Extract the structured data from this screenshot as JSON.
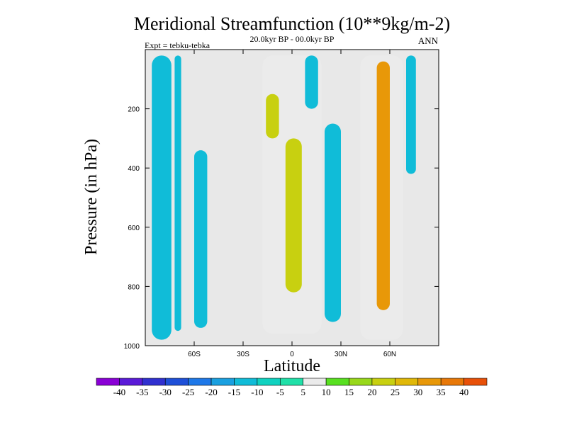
{
  "chart_data": {
    "type": "contour",
    "title": "Meridional Streamfunction (10**9kg/m-2)",
    "subtitle": "20.0kyr BP - 00.0kyr BP",
    "left_label": "Expt = tebku-tebka",
    "right_label": "ANN",
    "xlabel": "Latitude",
    "ylabel": "Pressure (in hPa)",
    "xlim": [
      -90,
      90
    ],
    "ylim": [
      1000,
      0
    ],
    "x_ticks": [
      -60,
      -30,
      0,
      30,
      60
    ],
    "x_tick_labels": [
      "60S",
      "30S",
      "0",
      "30N",
      "60N"
    ],
    "y_ticks": [
      200,
      400,
      600,
      800,
      1000
    ],
    "y_tick_labels": [
      "200",
      "400",
      "600",
      "800",
      "1000"
    ],
    "colorbar": {
      "labels": [
        "-40",
        "-35",
        "-30",
        "-25",
        "-20",
        "-15",
        "-10",
        "-5",
        "5",
        "10",
        "15",
        "20",
        "25",
        "30",
        "35",
        "40"
      ],
      "colors": [
        "#8a00d6",
        "#5a1ad8",
        "#3030d0",
        "#1e4fd8",
        "#1e78e8",
        "#1aa0e0",
        "#10bcd8",
        "#10d2c0",
        "#20e0a8",
        "#ebebeb",
        "#58e020",
        "#98d81a",
        "#c8d010",
        "#e0b808",
        "#e89808",
        "#e87808",
        "#e85008"
      ]
    },
    "fields": [
      {
        "name": "sh-band-1",
        "value": -10,
        "lat": [
          -86,
          -74
        ],
        "p": [
          20,
          980
        ]
      },
      {
        "name": "sh-band-2",
        "value": -10,
        "lat": [
          -72,
          -68
        ],
        "p": [
          20,
          950
        ]
      },
      {
        "name": "sh-band-3",
        "value": -10,
        "lat": [
          -60,
          -52
        ],
        "p": [
          340,
          940
        ]
      },
      {
        "name": "nh-high-cell",
        "value": 5,
        "lat": [
          -18,
          18
        ],
        "p": [
          20,
          960
        ]
      },
      {
        "name": "nh-high-cell-core",
        "value": 20,
        "lat": [
          -4,
          6
        ],
        "p": [
          300,
          820
        ]
      },
      {
        "name": "upper-cell",
        "value": 20,
        "lat": [
          -16,
          -8
        ],
        "p": [
          150,
          300
        ]
      },
      {
        "name": "nh-mid-cell",
        "value": 5,
        "lat": [
          42,
          68
        ],
        "p": [
          20,
          980
        ]
      },
      {
        "name": "nh-mid-cell-core",
        "value": 30,
        "lat": [
          52,
          60
        ],
        "p": [
          40,
          880
        ]
      },
      {
        "name": "nh-band-neg",
        "value": -10,
        "lat": [
          20,
          30
        ],
        "p": [
          250,
          920
        ]
      },
      {
        "name": "nh-band-upper",
        "value": -10,
        "lat": [
          8,
          16
        ],
        "p": [
          20,
          200
        ]
      },
      {
        "name": "nh-band-far",
        "value": -10,
        "lat": [
          70,
          76
        ],
        "p": [
          20,
          420
        ]
      }
    ]
  }
}
